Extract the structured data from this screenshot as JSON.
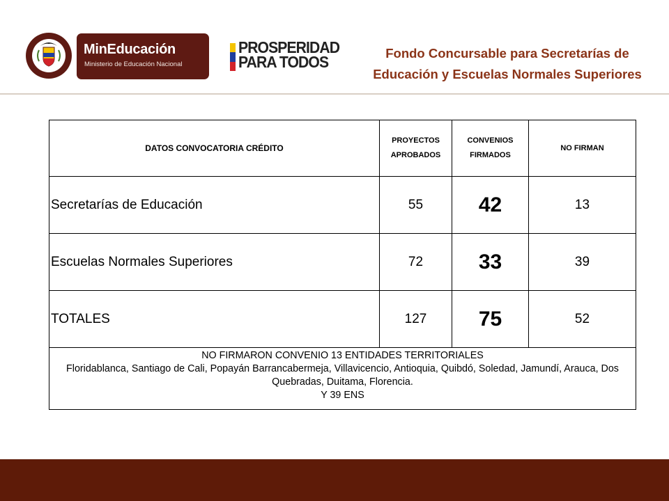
{
  "header": {
    "seal_text": "REPÚBLICA DE COLOMBIA",
    "min_title": "MinEducación",
    "min_subtitle": "Ministerio de Educación Nacional",
    "prosperidad_line1": "PROSPERIDAD",
    "prosperidad_line2": "PARA TODOS",
    "fondo_line1": "Fondo  Concursable para Secretarías de",
    "fondo_line2": "Educación y  Escuelas Normales Superiores"
  },
  "colors": {
    "brand_maroon": "#5e1a13",
    "title_rust": "#8b3418",
    "footer_brown": "#5e1b08",
    "flag_yellow": "#f4c300",
    "flag_blue": "#1f3e9c",
    "flag_red": "#d2232a"
  },
  "table": {
    "headers": [
      "DATOS CONVOCATORIA CRÉDITO",
      "PROYECTOS APROBADOS",
      "CONVENIOS FIRMADOS",
      "NO FIRMAN"
    ],
    "rows": [
      {
        "label": "Secretarías de Educación",
        "aprobados": "55",
        "firmados": "42",
        "no_firman": "13"
      },
      {
        "label": "Escuelas Normales Superiores",
        "aprobados": "72",
        "firmados": "33",
        "no_firman": "39"
      },
      {
        "label": "TOTALES",
        "aprobados": "127",
        "firmados": "75",
        "no_firman": "52"
      }
    ],
    "note": {
      "line1": "NO FIRMARON CONVENIO  13 ENTIDADES TERRITORIALES",
      "line2": "Floridablanca, Santiago de Cali, Popayán Barrancabermeja, Villavicencio, Antioquia, Quibdó, Soledad, Jamundí, Arauca, Dos Quebradas, Duitama, Florencia.",
      "line3": "Y 39  ENS"
    }
  }
}
